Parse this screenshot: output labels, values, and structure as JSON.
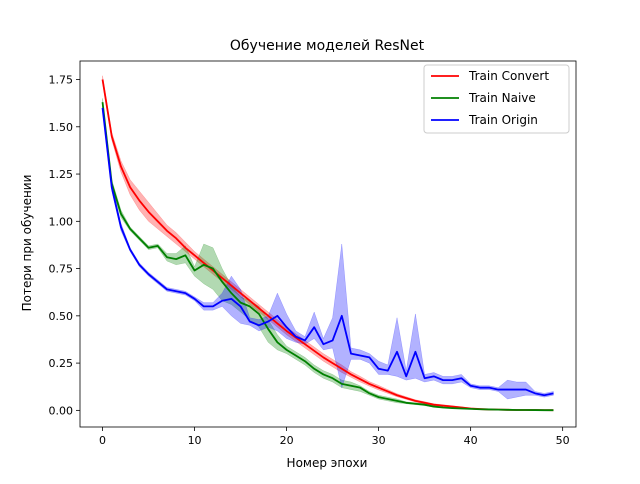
{
  "chart_data": {
    "type": "line",
    "title": "Обучение моделей ResNet",
    "xlabel": "Номер эпохи",
    "ylabel": "Потери при обучении",
    "xlim": [
      -2.45,
      51.45
    ],
    "ylim": [
      -0.088,
      1.848
    ],
    "xticks": [
      0,
      10,
      20,
      30,
      40,
      50
    ],
    "xtick_labels": [
      "0",
      "10",
      "20",
      "30",
      "40",
      "50"
    ],
    "yticks": [
      0.0,
      0.25,
      0.5,
      0.75,
      1.0,
      1.25,
      1.5,
      1.75
    ],
    "ytick_labels": [
      "0.00",
      "0.25",
      "0.50",
      "0.75",
      "1.00",
      "1.25",
      "1.50",
      "1.75"
    ],
    "grid": false,
    "legend_position": "top-right",
    "x": [
      0,
      1,
      2,
      3,
      4,
      5,
      6,
      7,
      8,
      9,
      10,
      11,
      12,
      13,
      14,
      15,
      16,
      17,
      18,
      19,
      20,
      21,
      22,
      23,
      24,
      25,
      26,
      27,
      28,
      29,
      30,
      31,
      32,
      33,
      34,
      35,
      36,
      37,
      38,
      39,
      40,
      41,
      42,
      43,
      44,
      45,
      46,
      47,
      48,
      49
    ],
    "series": [
      {
        "name": "Train Convert",
        "color": "#ff0000",
        "values": [
          1.75,
          1.45,
          1.29,
          1.18,
          1.11,
          1.05,
          1.0,
          0.95,
          0.91,
          0.86,
          0.82,
          0.78,
          0.74,
          0.7,
          0.66,
          0.62,
          0.58,
          0.54,
          0.5,
          0.46,
          0.42,
          0.385,
          0.35,
          0.315,
          0.28,
          0.25,
          0.22,
          0.19,
          0.165,
          0.14,
          0.12,
          0.1,
          0.08,
          0.065,
          0.05,
          0.04,
          0.03,
          0.025,
          0.02,
          0.015,
          0.01,
          0.007,
          0.005,
          0.004,
          0.003,
          0.002,
          0.002,
          0.0015,
          0.0012,
          0.001
        ],
        "band_lower": [
          1.73,
          1.43,
          1.26,
          1.14,
          1.06,
          1.0,
          0.96,
          0.92,
          0.88,
          0.84,
          0.8,
          0.76,
          0.72,
          0.68,
          0.64,
          0.6,
          0.56,
          0.52,
          0.48,
          0.44,
          0.4,
          0.365,
          0.33,
          0.295,
          0.26,
          0.23,
          0.2,
          0.175,
          0.15,
          0.128,
          0.108,
          0.09,
          0.072,
          0.058,
          0.044,
          0.034,
          0.025,
          0.02,
          0.016,
          0.011,
          0.007,
          0.005,
          0.003,
          0.002,
          0.0015,
          0.001,
          0.001,
          0.0008,
          0.0006,
          0.0005
        ],
        "band_upper": [
          1.77,
          1.47,
          1.32,
          1.22,
          1.16,
          1.1,
          1.04,
          0.98,
          0.94,
          0.89,
          0.84,
          0.8,
          0.76,
          0.72,
          0.68,
          0.64,
          0.6,
          0.56,
          0.52,
          0.48,
          0.44,
          0.405,
          0.37,
          0.335,
          0.3,
          0.27,
          0.24,
          0.205,
          0.18,
          0.152,
          0.132,
          0.11,
          0.088,
          0.072,
          0.056,
          0.046,
          0.035,
          0.03,
          0.024,
          0.019,
          0.013,
          0.009,
          0.007,
          0.006,
          0.0045,
          0.003,
          0.003,
          0.0022,
          0.0018,
          0.0015
        ]
      },
      {
        "name": "Train Naive",
        "color": "#008000",
        "values": [
          1.63,
          1.2,
          1.04,
          0.96,
          0.91,
          0.86,
          0.87,
          0.81,
          0.8,
          0.82,
          0.74,
          0.77,
          0.75,
          0.68,
          0.62,
          0.57,
          0.55,
          0.51,
          0.43,
          0.36,
          0.32,
          0.29,
          0.26,
          0.22,
          0.19,
          0.17,
          0.14,
          0.13,
          0.12,
          0.09,
          0.07,
          0.06,
          0.05,
          0.04,
          0.035,
          0.03,
          0.02,
          0.015,
          0.012,
          0.01,
          0.008,
          0.006,
          0.005,
          0.004,
          0.003,
          0.002,
          0.002,
          0.0015,
          0.001,
          0.001
        ],
        "band_lower": [
          1.61,
          1.18,
          1.02,
          0.95,
          0.9,
          0.85,
          0.86,
          0.79,
          0.77,
          0.78,
          0.71,
          0.67,
          0.64,
          0.58,
          0.56,
          0.52,
          0.48,
          0.44,
          0.36,
          0.32,
          0.3,
          0.27,
          0.24,
          0.2,
          0.17,
          0.15,
          0.12,
          0.11,
          0.1,
          0.08,
          0.06,
          0.05,
          0.04,
          0.035,
          0.03,
          0.025,
          0.017,
          0.013,
          0.01,
          0.008,
          0.006,
          0.005,
          0.004,
          0.003,
          0.002,
          0.0015,
          0.0015,
          0.001,
          0.0008,
          0.0008
        ],
        "band_upper": [
          1.65,
          1.22,
          1.06,
          0.97,
          0.92,
          0.87,
          0.88,
          0.83,
          0.83,
          0.87,
          0.76,
          0.88,
          0.86,
          0.75,
          0.66,
          0.6,
          0.58,
          0.55,
          0.48,
          0.4,
          0.34,
          0.31,
          0.28,
          0.24,
          0.21,
          0.19,
          0.16,
          0.15,
          0.13,
          0.1,
          0.08,
          0.07,
          0.06,
          0.045,
          0.04,
          0.035,
          0.025,
          0.018,
          0.014,
          0.012,
          0.01,
          0.008,
          0.006,
          0.005,
          0.004,
          0.003,
          0.003,
          0.002,
          0.0015,
          0.0015
        ]
      },
      {
        "name": "Train Origin",
        "color": "#0000ff",
        "values": [
          1.6,
          1.18,
          0.97,
          0.85,
          0.77,
          0.72,
          0.68,
          0.64,
          0.63,
          0.62,
          0.59,
          0.55,
          0.55,
          0.58,
          0.59,
          0.55,
          0.47,
          0.45,
          0.47,
          0.5,
          0.44,
          0.39,
          0.37,
          0.44,
          0.35,
          0.37,
          0.5,
          0.3,
          0.29,
          0.28,
          0.22,
          0.21,
          0.31,
          0.18,
          0.31,
          0.17,
          0.18,
          0.16,
          0.16,
          0.17,
          0.13,
          0.12,
          0.12,
          0.11,
          0.11,
          0.11,
          0.11,
          0.09,
          0.08,
          0.09
        ],
        "band_lower": [
          1.58,
          1.16,
          0.95,
          0.84,
          0.76,
          0.71,
          0.67,
          0.63,
          0.62,
          0.61,
          0.58,
          0.53,
          0.53,
          0.55,
          0.5,
          0.46,
          0.45,
          0.42,
          0.44,
          0.42,
          0.38,
          0.36,
          0.35,
          0.38,
          0.32,
          0.33,
          0.12,
          0.27,
          0.27,
          0.25,
          0.19,
          0.19,
          0.18,
          0.16,
          0.17,
          0.15,
          0.16,
          0.14,
          0.14,
          0.15,
          0.12,
          0.11,
          0.11,
          0.1,
          0.06,
          0.07,
          0.08,
          0.08,
          0.07,
          0.08
        ],
        "band_upper": [
          1.62,
          1.2,
          0.99,
          0.86,
          0.78,
          0.73,
          0.69,
          0.65,
          0.64,
          0.63,
          0.6,
          0.57,
          0.57,
          0.62,
          0.71,
          0.64,
          0.49,
          0.48,
          0.5,
          0.62,
          0.51,
          0.42,
          0.39,
          0.52,
          0.38,
          0.49,
          0.88,
          0.33,
          0.32,
          0.3,
          0.26,
          0.24,
          0.49,
          0.21,
          0.51,
          0.19,
          0.2,
          0.18,
          0.18,
          0.19,
          0.14,
          0.13,
          0.13,
          0.12,
          0.16,
          0.15,
          0.15,
          0.1,
          0.09,
          0.1
        ]
      }
    ]
  }
}
